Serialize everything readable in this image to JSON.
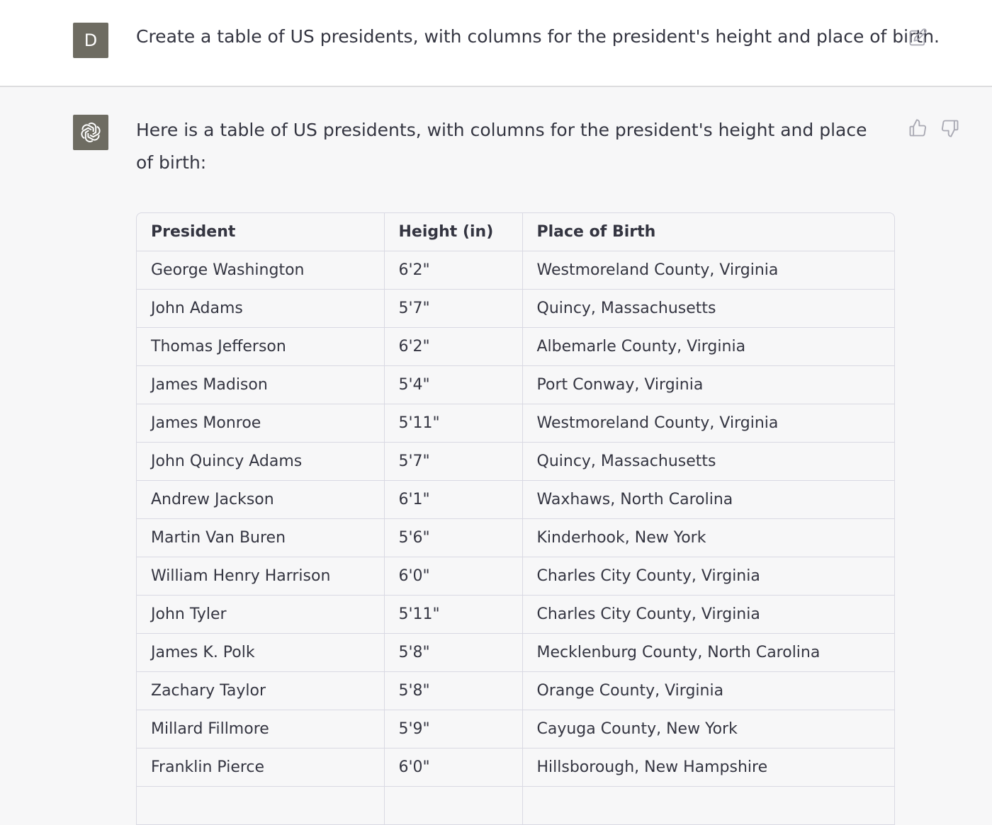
{
  "user": {
    "avatar_letter": "D",
    "message": "Create a table of US presidents, with columns for the president's height and place of birth."
  },
  "assistant": {
    "intro": "Here is a table of US presidents, with columns for the president's height and place of birth:",
    "table": {
      "headers": [
        "President",
        "Height (in)",
        "Place of Birth"
      ],
      "rows": [
        [
          "George Washington",
          "6'2\"",
          "Westmoreland County, Virginia"
        ],
        [
          "John Adams",
          "5'7\"",
          "Quincy, Massachusetts"
        ],
        [
          "Thomas Jefferson",
          "6'2\"",
          "Albemarle County, Virginia"
        ],
        [
          "James Madison",
          "5'4\"",
          "Port Conway, Virginia"
        ],
        [
          "James Monroe",
          "5'11\"",
          "Westmoreland County, Virginia"
        ],
        [
          "John Quincy Adams",
          "5'7\"",
          "Quincy, Massachusetts"
        ],
        [
          "Andrew Jackson",
          "6'1\"",
          "Waxhaws, North Carolina"
        ],
        [
          "Martin Van Buren",
          "5'6\"",
          "Kinderhook, New York"
        ],
        [
          "William Henry Harrison",
          "6'0\"",
          "Charles City County, Virginia"
        ],
        [
          "John Tyler",
          "5'11\"",
          "Charles City County, Virginia"
        ],
        [
          "James K. Polk",
          "5'8\"",
          "Mecklenburg County, North Carolina"
        ],
        [
          "Zachary Taylor",
          "5'8\"",
          "Orange County, Virginia"
        ],
        [
          "Millard Fillmore",
          "5'9\"",
          "Cayuga County, New York"
        ],
        [
          "Franklin Pierce",
          "6'0\"",
          "Hillsborough, New Hampshire"
        ],
        [
          "",
          "",
          ""
        ]
      ]
    }
  },
  "icons": {
    "edit": "edit-icon",
    "thumb_up": "thumbs-up-icon",
    "thumb_down": "thumbs-down-icon",
    "assistant_logo": "openai-logo-icon"
  },
  "colors": {
    "user_bg": "#ffffff",
    "assistant_bg": "#f7f7f8",
    "avatar_bg": "#6e6c62",
    "border": "#d9d9e3",
    "text": "#343541"
  }
}
